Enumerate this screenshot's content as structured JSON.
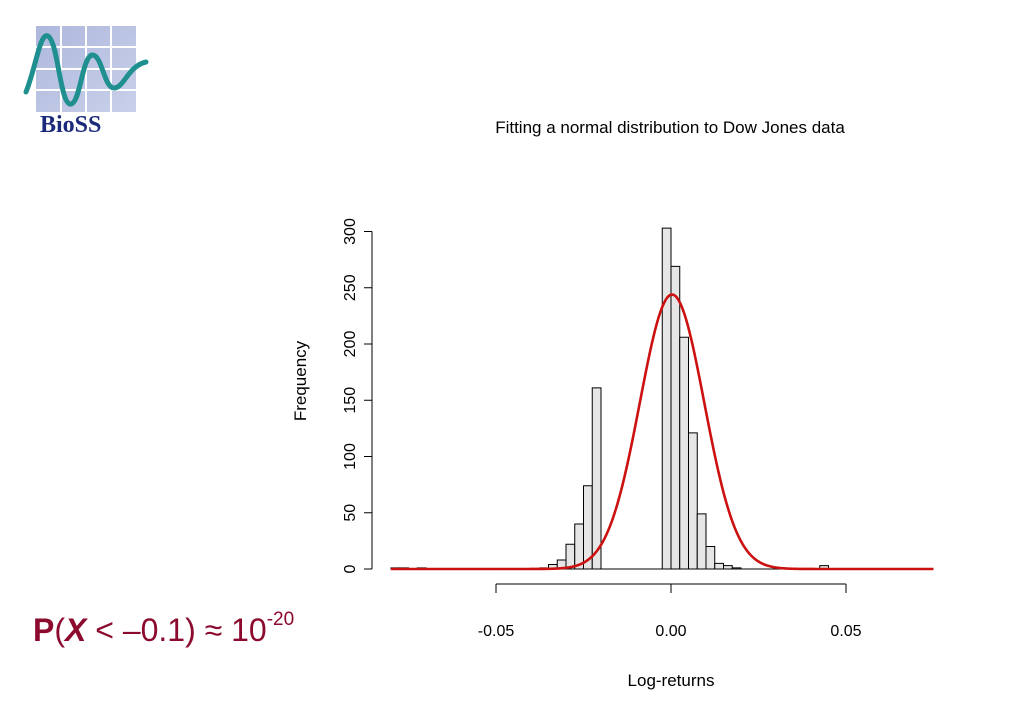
{
  "logo": {
    "text": "BioSS"
  },
  "formula": {
    "P": "P",
    "open": "(",
    "var": "X",
    "rel": " < –0.1) ≈ 10",
    "exp": "-20"
  },
  "colors": {
    "bar_fill": "#e6e6e6",
    "curve": "#cc1111",
    "formula": "#8b0a2e",
    "logo_teal": "#1f8f8f",
    "logo_navy": "#1b2a7a"
  },
  "chart_data": {
    "type": "bar",
    "title": "Fitting a normal distribution to Dow Jones data",
    "xlabel": "Log-returns",
    "ylabel": "Frequency",
    "xlim": [
      -0.08,
      0.075
    ],
    "ylim": [
      0,
      300
    ],
    "x_ticks": [
      -0.05,
      0.0,
      0.05
    ],
    "x_tick_labels": [
      "-0.05",
      "0.00",
      "0.05"
    ],
    "y_ticks": [
      0,
      50,
      100,
      150,
      200,
      250,
      300
    ],
    "y_tick_labels": [
      "0",
      "50",
      "100",
      "150",
      "200",
      "250",
      "300"
    ],
    "bin_width": 0.0025,
    "bins": [
      {
        "left": -0.08,
        "count": 1
      },
      {
        "left": -0.0775,
        "count": 1
      },
      {
        "left": -0.0725,
        "count": 1
      },
      {
        "left": -0.0375,
        "count": 1
      },
      {
        "left": -0.035,
        "count": 4
      },
      {
        "left": -0.0325,
        "count": 8
      },
      {
        "left": -0.03,
        "count": 22
      },
      {
        "left": -0.0275,
        "count": 40
      },
      {
        "left": -0.025,
        "count": 74
      },
      {
        "left": -0.0225,
        "count": 161
      },
      {
        "left": -0.0025,
        "count": 303
      },
      {
        "left": 0.0,
        "count": 269
      },
      {
        "left": 0.0025,
        "count": 206
      },
      {
        "left": 0.005,
        "count": 121
      },
      {
        "left": 0.0075,
        "count": 49
      },
      {
        "left": 0.01,
        "count": 20
      },
      {
        "left": 0.0125,
        "count": 5
      },
      {
        "left": 0.015,
        "count": 3
      },
      {
        "left": 0.0175,
        "count": 1
      },
      {
        "left": 0.0425,
        "count": 3
      }
    ],
    "fitted_normal": {
      "mean": 0.0003,
      "sd": 0.0092,
      "peak": 244
    },
    "grid": false,
    "legend": "none"
  }
}
